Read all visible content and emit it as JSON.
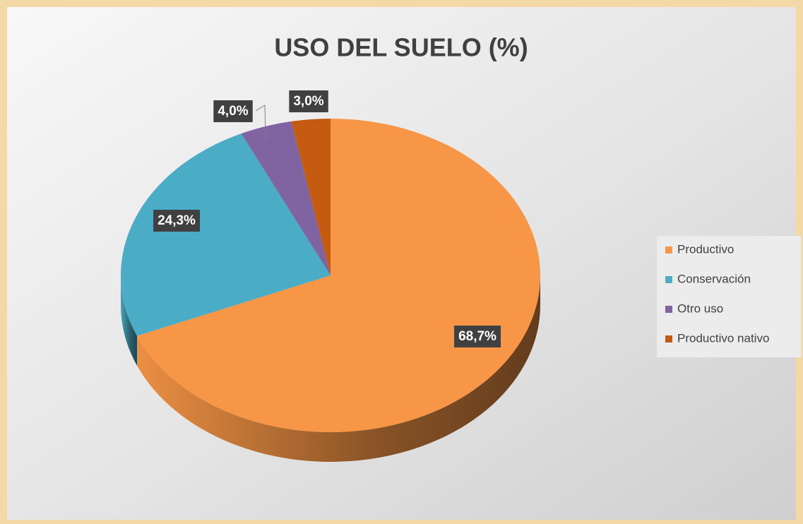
{
  "chart_data": {
    "type": "pie",
    "title": "USO DEL SUELO (%)",
    "categories": [
      "Productivo",
      "Conservación",
      "Otro uso",
      "Productivo nativo"
    ],
    "values": [
      68.7,
      24.3,
      4.0,
      3.0
    ],
    "value_labels": [
      "68,7%",
      "24,3%",
      "4,0%",
      "3,0%"
    ],
    "colors": [
      "#f79646",
      "#4bacc6",
      "#8064a2",
      "#c55a11"
    ],
    "legend": "right"
  }
}
